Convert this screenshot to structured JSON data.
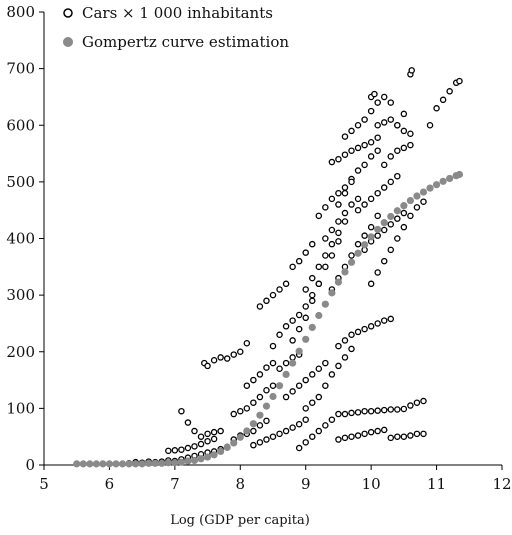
{
  "chart_data": {
    "type": "scatter",
    "xlabel": "Log (GDP per capita)",
    "ylabel": "",
    "xlim": [
      5,
      12
    ],
    "ylim": [
      0,
      800
    ],
    "x_ticks": [
      5,
      6,
      7,
      8,
      9,
      10,
      11,
      12
    ],
    "y_ticks": [
      0,
      100,
      200,
      300,
      400,
      500,
      600,
      700,
      800
    ],
    "grid": false,
    "legend_position": "top-left",
    "series": [
      {
        "name": "Cars × 1 000 inhabitants",
        "marker": "open-circle",
        "color": "#000000",
        "points": [
          [
            6.2,
            2
          ],
          [
            6.3,
            3
          ],
          [
            6.4,
            5
          ],
          [
            6.5,
            4
          ],
          [
            6.6,
            6
          ],
          [
            6.7,
            5
          ],
          [
            6.8,
            6
          ],
          [
            6.9,
            8
          ],
          [
            7.0,
            7
          ],
          [
            7.1,
            10
          ],
          [
            7.2,
            13
          ],
          [
            7.3,
            16
          ],
          [
            7.4,
            19
          ],
          [
            7.5,
            22
          ],
          [
            7.6,
            24
          ],
          [
            7.7,
            28
          ],
          [
            7.8,
            32
          ],
          [
            6.9,
            25
          ],
          [
            7.0,
            26
          ],
          [
            7.1,
            27
          ],
          [
            7.2,
            30
          ],
          [
            7.3,
            33
          ],
          [
            7.4,
            37
          ],
          [
            7.5,
            42
          ],
          [
            7.6,
            46
          ],
          [
            7.1,
            95
          ],
          [
            7.2,
            75
          ],
          [
            7.3,
            60
          ],
          [
            7.4,
            50
          ],
          [
            7.5,
            55
          ],
          [
            7.6,
            58
          ],
          [
            7.7,
            60
          ],
          [
            7.45,
            180
          ],
          [
            7.5,
            175
          ],
          [
            7.6,
            185
          ],
          [
            7.7,
            190
          ],
          [
            7.8,
            188
          ],
          [
            7.9,
            195
          ],
          [
            8.0,
            200
          ],
          [
            8.1,
            215
          ],
          [
            7.9,
            45
          ],
          [
            8.0,
            52
          ],
          [
            8.1,
            55
          ],
          [
            8.2,
            60
          ],
          [
            8.3,
            70
          ],
          [
            8.4,
            78
          ],
          [
            7.9,
            90
          ],
          [
            8.0,
            95
          ],
          [
            8.1,
            100
          ],
          [
            8.2,
            110
          ],
          [
            8.3,
            120
          ],
          [
            8.4,
            132
          ],
          [
            8.5,
            140
          ],
          [
            8.1,
            140
          ],
          [
            8.2,
            150
          ],
          [
            8.3,
            160
          ],
          [
            8.4,
            172
          ],
          [
            8.5,
            180
          ],
          [
            8.2,
            35
          ],
          [
            8.3,
            40
          ],
          [
            8.4,
            45
          ],
          [
            8.5,
            50
          ],
          [
            8.6,
            55
          ],
          [
            8.7,
            60
          ],
          [
            8.8,
            66
          ],
          [
            8.9,
            72
          ],
          [
            9.0,
            80
          ],
          [
            8.5,
            210
          ],
          [
            8.6,
            230
          ],
          [
            8.7,
            245
          ],
          [
            8.8,
            255
          ],
          [
            8.9,
            265
          ],
          [
            9.0,
            280
          ],
          [
            9.1,
            300
          ],
          [
            9.2,
            320
          ],
          [
            8.7,
            120
          ],
          [
            8.8,
            130
          ],
          [
            8.9,
            140
          ],
          [
            9.0,
            150
          ],
          [
            9.1,
            160
          ],
          [
            9.2,
            170
          ],
          [
            9.3,
            180
          ],
          [
            8.8,
            220
          ],
          [
            8.9,
            240
          ],
          [
            9.0,
            260
          ],
          [
            9.1,
            290
          ],
          [
            9.2,
            320
          ],
          [
            9.3,
            350
          ],
          [
            9.4,
            370
          ],
          [
            9.5,
            395
          ],
          [
            8.9,
            30
          ],
          [
            9.0,
            40
          ],
          [
            9.1,
            50
          ],
          [
            9.2,
            60
          ],
          [
            9.3,
            70
          ],
          [
            9.4,
            80
          ],
          [
            9.5,
            90
          ],
          [
            9.0,
            100
          ],
          [
            9.1,
            110
          ],
          [
            9.2,
            120
          ],
          [
            9.3,
            140
          ],
          [
            9.4,
            160
          ],
          [
            9.5,
            175
          ],
          [
            9.6,
            190
          ],
          [
            9.7,
            205
          ],
          [
            9.0,
            310
          ],
          [
            9.1,
            330
          ],
          [
            9.2,
            350
          ],
          [
            9.3,
            370
          ],
          [
            9.4,
            390
          ],
          [
            9.5,
            410
          ],
          [
            9.6,
            430
          ],
          [
            9.2,
            440
          ],
          [
            9.3,
            455
          ],
          [
            9.4,
            470
          ],
          [
            9.5,
            480
          ],
          [
            9.6,
            490
          ],
          [
            9.7,
            505
          ],
          [
            9.4,
            310
          ],
          [
            9.5,
            330
          ],
          [
            9.6,
            350
          ],
          [
            9.7,
            370
          ],
          [
            9.8,
            390
          ],
          [
            9.9,
            405
          ],
          [
            10.0,
            420
          ],
          [
            10.1,
            440
          ],
          [
            9.3,
            400
          ],
          [
            9.4,
            415
          ],
          [
            9.5,
            430
          ],
          [
            9.6,
            445
          ],
          [
            9.7,
            460
          ],
          [
            9.8,
            470
          ],
          [
            9.4,
            535
          ],
          [
            9.5,
            540
          ],
          [
            9.6,
            548
          ],
          [
            9.7,
            555
          ],
          [
            9.8,
            560
          ],
          [
            9.9,
            565
          ],
          [
            10.0,
            570
          ],
          [
            10.1,
            578
          ],
          [
            9.5,
            210
          ],
          [
            9.6,
            220
          ],
          [
            9.7,
            230
          ],
          [
            9.8,
            235
          ],
          [
            9.9,
            240
          ],
          [
            10.0,
            245
          ],
          [
            10.1,
            250
          ],
          [
            10.2,
            255
          ],
          [
            10.3,
            258
          ],
          [
            9.5,
            45
          ],
          [
            9.6,
            48
          ],
          [
            9.7,
            50
          ],
          [
            9.8,
            52
          ],
          [
            9.9,
            55
          ],
          [
            10.0,
            58
          ],
          [
            10.1,
            60
          ],
          [
            10.2,
            62
          ],
          [
            9.6,
            90
          ],
          [
            9.7,
            92
          ],
          [
            9.8,
            93
          ],
          [
            9.9,
            95
          ],
          [
            10.0,
            95
          ],
          [
            10.1,
            96
          ],
          [
            10.2,
            97
          ],
          [
            10.3,
            98
          ],
          [
            10.4,
            98
          ],
          [
            10.5,
            99
          ],
          [
            9.5,
            460
          ],
          [
            9.6,
            480
          ],
          [
            9.7,
            500
          ],
          [
            9.8,
            520
          ],
          [
            9.9,
            530
          ],
          [
            10.0,
            545
          ],
          [
            10.1,
            555
          ],
          [
            9.6,
            580
          ],
          [
            9.7,
            590
          ],
          [
            9.8,
            600
          ],
          [
            9.9,
            610
          ],
          [
            10.0,
            625
          ],
          [
            10.1,
            640
          ],
          [
            10.2,
            650
          ],
          [
            9.8,
            450
          ],
          [
            9.9,
            460
          ],
          [
            10.0,
            470
          ],
          [
            10.1,
            480
          ],
          [
            10.2,
            490
          ],
          [
            10.3,
            500
          ],
          [
            10.4,
            510
          ],
          [
            9.9,
            380
          ],
          [
            10.0,
            395
          ],
          [
            10.1,
            405
          ],
          [
            10.2,
            415
          ],
          [
            10.3,
            425
          ],
          [
            10.4,
            435
          ],
          [
            10.5,
            445
          ],
          [
            10.0,
            320
          ],
          [
            10.1,
            340
          ],
          [
            10.2,
            360
          ],
          [
            10.3,
            380
          ],
          [
            10.4,
            400
          ],
          [
            10.5,
            420
          ],
          [
            10.6,
            440
          ],
          [
            10.7,
            455
          ],
          [
            10.8,
            465
          ],
          [
            10.1,
            600
          ],
          [
            10.2,
            605
          ],
          [
            10.3,
            610
          ],
          [
            10.4,
            600
          ],
          [
            10.5,
            590
          ],
          [
            10.6,
            585
          ],
          [
            10.2,
            530
          ],
          [
            10.3,
            545
          ],
          [
            10.4,
            555
          ],
          [
            10.5,
            560
          ],
          [
            10.6,
            565
          ],
          [
            10.4,
            600
          ],
          [
            10.5,
            620
          ],
          [
            10.6,
            690
          ],
          [
            10.62,
            697
          ],
          [
            10.3,
            640
          ],
          [
            10.0,
            650
          ],
          [
            10.05,
            655
          ],
          [
            10.5,
            50
          ],
          [
            10.6,
            52
          ],
          [
            10.7,
            55
          ],
          [
            10.8,
            55
          ],
          [
            10.3,
            48
          ],
          [
            10.4,
            50
          ],
          [
            10.7,
            110
          ],
          [
            10.8,
            113
          ],
          [
            10.6,
            105
          ],
          [
            10.9,
            600
          ],
          [
            11.0,
            630
          ],
          [
            11.1,
            645
          ],
          [
            11.2,
            660
          ],
          [
            11.3,
            675
          ],
          [
            11.35,
            678
          ],
          [
            8.3,
            280
          ],
          [
            8.4,
            290
          ],
          [
            8.5,
            300
          ],
          [
            8.6,
            310
          ],
          [
            8.7,
            320
          ],
          [
            8.6,
            170
          ],
          [
            8.7,
            180
          ],
          [
            8.8,
            190
          ],
          [
            8.9,
            195
          ],
          [
            8.8,
            350
          ],
          [
            8.9,
            360
          ],
          [
            9.0,
            375
          ],
          [
            9.1,
            390
          ]
        ]
      },
      {
        "name": "Gompertz curve estimation",
        "marker": "filled-circle",
        "color": "#8a8a8a",
        "points": [
          [
            5.5,
            2
          ],
          [
            5.6,
            2
          ],
          [
            5.7,
            2
          ],
          [
            5.8,
            2
          ],
          [
            5.9,
            2
          ],
          [
            6.0,
            2
          ],
          [
            6.1,
            2
          ],
          [
            6.2,
            2
          ],
          [
            6.3,
            2
          ],
          [
            6.4,
            2
          ],
          [
            6.5,
            2
          ],
          [
            6.6,
            3
          ],
          [
            6.7,
            3
          ],
          [
            6.8,
            3
          ],
          [
            6.9,
            4
          ],
          [
            7.0,
            4
          ],
          [
            7.1,
            5
          ],
          [
            7.2,
            7
          ],
          [
            7.3,
            8
          ],
          [
            7.4,
            11
          ],
          [
            7.5,
            14
          ],
          [
            7.6,
            18
          ],
          [
            7.7,
            24
          ],
          [
            7.8,
            31
          ],
          [
            7.9,
            39
          ],
          [
            8.0,
            49
          ],
          [
            8.1,
            60
          ],
          [
            8.2,
            73
          ],
          [
            8.3,
            88
          ],
          [
            8.4,
            104
          ],
          [
            8.5,
            121
          ],
          [
            8.6,
            140
          ],
          [
            8.7,
            160
          ],
          [
            8.8,
            180
          ],
          [
            8.9,
            201
          ],
          [
            9.0,
            222
          ],
          [
            9.1,
            243
          ],
          [
            9.2,
            264
          ],
          [
            9.3,
            284
          ],
          [
            9.4,
            304
          ],
          [
            9.5,
            323
          ],
          [
            9.6,
            341
          ],
          [
            9.7,
            358
          ],
          [
            9.8,
            374
          ],
          [
            9.9,
            389
          ],
          [
            10.0,
            403
          ],
          [
            10.1,
            416
          ],
          [
            10.2,
            428
          ],
          [
            10.3,
            439
          ],
          [
            10.4,
            449
          ],
          [
            10.5,
            458
          ],
          [
            10.6,
            467
          ],
          [
            10.7,
            475
          ],
          [
            10.8,
            482
          ],
          [
            10.9,
            489
          ],
          [
            11.0,
            495
          ],
          [
            11.1,
            501
          ],
          [
            11.2,
            506
          ],
          [
            11.3,
            511
          ],
          [
            11.35,
            513
          ]
        ]
      }
    ]
  }
}
